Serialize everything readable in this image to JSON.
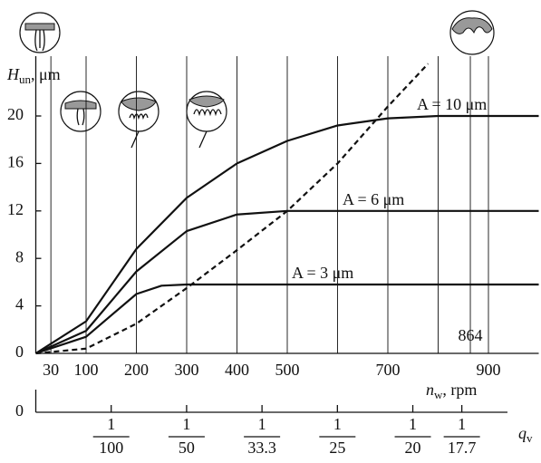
{
  "chart_data": {
    "type": "line",
    "ylabel": {
      "symbol": "H",
      "subscript": "un",
      "unit": ", μm"
    },
    "xlabel": {
      "symbol": "n",
      "subscript": "w",
      "unit": ", rpm"
    },
    "x2label": {
      "symbol": "q",
      "subscript": "v"
    },
    "xlim": [
      0,
      1000
    ],
    "ylim": [
      0,
      26
    ],
    "xticks": [
      30,
      100,
      200,
      300,
      400,
      500,
      700,
      900
    ],
    "xgrid": [
      30,
      100,
      200,
      300,
      400,
      500,
      600,
      700,
      800,
      900
    ],
    "yticks": [
      0,
      4,
      8,
      12,
      16,
      20
    ],
    "x2lim": [
      0,
      0.0667
    ],
    "x2ticks": [
      {
        "value": 0,
        "label": "0"
      },
      {
        "value": 0.01,
        "numerator": "1",
        "denominator": "100"
      },
      {
        "value": 0.02,
        "numerator": "1",
        "denominator": "50"
      },
      {
        "value": 0.03,
        "numerator": "1",
        "denominator": "33.3"
      },
      {
        "value": 0.04,
        "numerator": "1",
        "denominator": "25"
      },
      {
        "value": 0.05,
        "numerator": "1",
        "denominator": "20"
      },
      {
        "value": 0.0565,
        "numerator": "1",
        "denominator": "17.7"
      }
    ],
    "series": [
      {
        "name": "A = 10 μm",
        "color": "#111",
        "dash": false,
        "x": [
          0,
          100,
          200,
          300,
          400,
          500,
          600,
          700,
          800,
          1000
        ],
        "values": [
          0,
          2.7,
          8.8,
          13.1,
          16,
          17.9,
          19.2,
          19.8,
          20,
          20
        ]
      },
      {
        "name": "A = 6 μm",
        "color": "#111",
        "dash": false,
        "x": [
          0,
          100,
          200,
          300,
          400,
          500,
          600,
          1000
        ],
        "values": [
          0,
          1.9,
          6.9,
          10.3,
          11.7,
          12,
          12,
          12
        ]
      },
      {
        "name": "A = 3 μm",
        "color": "#111",
        "dash": false,
        "x": [
          0,
          100,
          200,
          250,
          300,
          1000
        ],
        "values": [
          0,
          1.4,
          5,
          5.7,
          5.8,
          5.8
        ]
      },
      {
        "name": null,
        "color": "#111",
        "dash": true,
        "x": [
          0,
          100,
          200,
          300,
          400,
          500,
          600,
          700,
          780
        ],
        "values": [
          0,
          0.4,
          2.5,
          5.5,
          8.7,
          12,
          16,
          20.8,
          24.4
        ]
      }
    ],
    "annotations": [
      {
        "x": 864,
        "text": "864"
      }
    ]
  }
}
